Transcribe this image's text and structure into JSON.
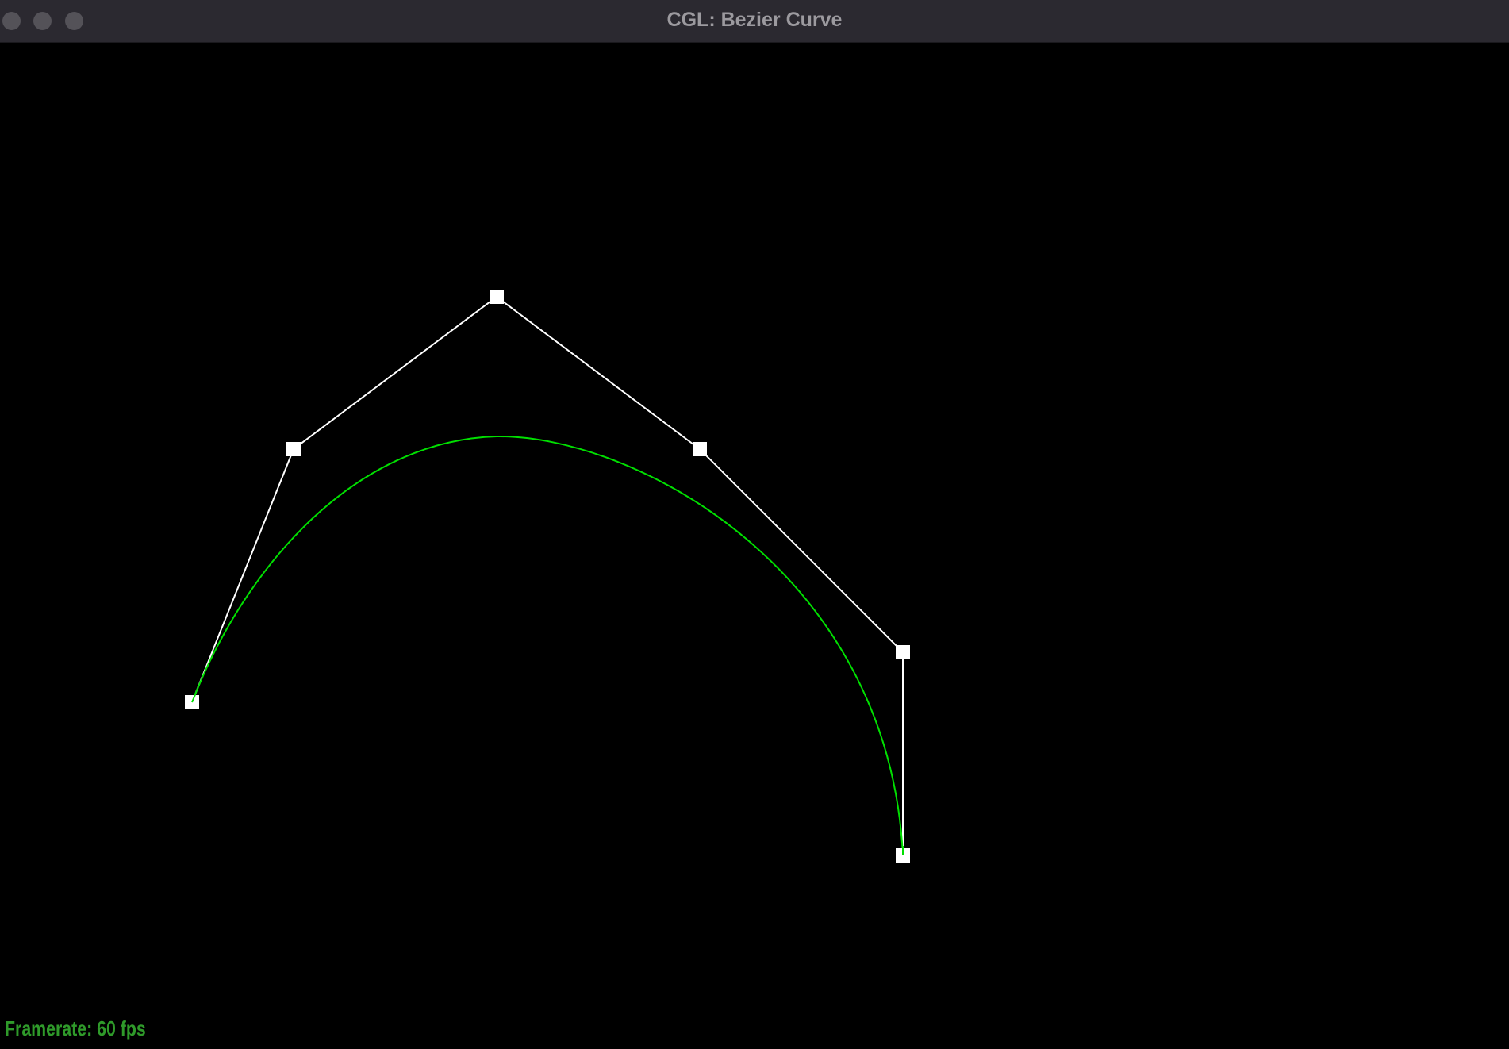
{
  "window": {
    "title": "CGL: Bezier Curve"
  },
  "status": {
    "framerate_text": "Framerate: 60 fps"
  },
  "colors": {
    "background": "#000000",
    "titlebar": "#2b2930",
    "control_polygon": "#ffffff",
    "curve": "#00e000",
    "framerate_text": "#2f9a2a"
  }
}
